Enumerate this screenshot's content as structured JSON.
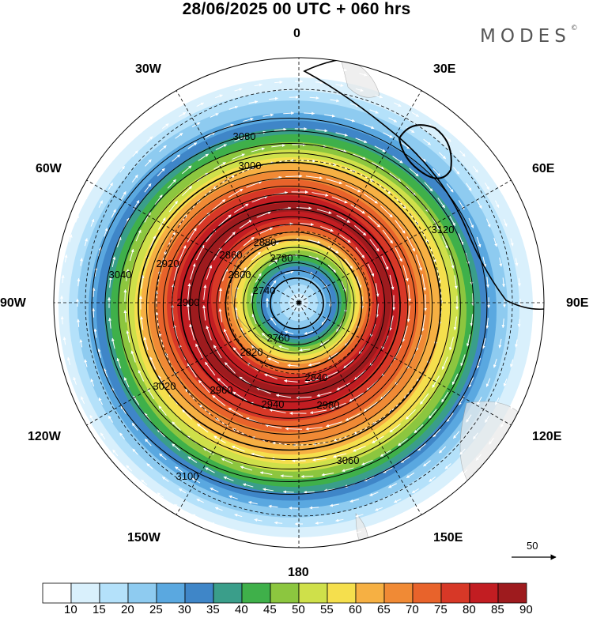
{
  "header": {
    "title": "28/06/2025  00 UTC  + 060 hrs",
    "brand": "MODES",
    "brand_mark": "©"
  },
  "map": {
    "projection": "polar-stereographic (south pole)",
    "longitude_labels": [
      "0",
      "30E",
      "60E",
      "90E",
      "120E",
      "150E",
      "180",
      "150W",
      "120W",
      "90W",
      "60W",
      "30W"
    ],
    "contour_labels": [
      "2740",
      "2760",
      "2780",
      "2800",
      "2820",
      "2840",
      "2860",
      "2880",
      "2900",
      "2920",
      "2940",
      "2960",
      "2980",
      "3000",
      "3020",
      "3040",
      "3060",
      "3080",
      "3100",
      "3120"
    ],
    "wind_reference": {
      "label": "50"
    }
  },
  "colorbar": {
    "ticks": [
      "10",
      "15",
      "20",
      "25",
      "30",
      "35",
      "40",
      "45",
      "50",
      "55",
      "60",
      "65",
      "70",
      "75",
      "80",
      "85",
      "90"
    ],
    "colors": [
      "#ffffff",
      "#d9f0fc",
      "#b4e1fa",
      "#8ecbf0",
      "#5aa8e0",
      "#3f86c8",
      "#3a9e8a",
      "#3fb04a",
      "#8cc63f",
      "#cfe04a",
      "#f5df4d",
      "#f6b043",
      "#f08a35",
      "#e8632b",
      "#d73827",
      "#c21d22",
      "#9e1b1e"
    ]
  }
}
